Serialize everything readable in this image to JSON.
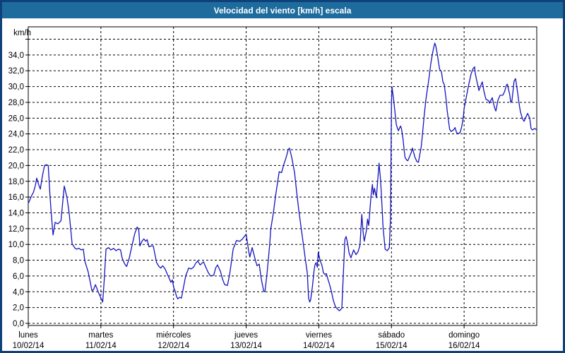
{
  "window": {
    "title": "Velocidad del viento [km/h] escala"
  },
  "colors": {
    "window_border": "#10407a",
    "titlebar_bg": "#1d6c9d",
    "title_text": "#ffffff",
    "plot_bg": "#ffffff",
    "plot_border": "#000000",
    "grid": "#000000",
    "line": "#1414be"
  },
  "chart_data": {
    "type": "line",
    "title": "Velocidad del viento [km/h] escala",
    "ylabel": "km/h",
    "y_unit_label": "km/h",
    "ylim": [
      0,
      37.6
    ],
    "y_ticks": [
      0,
      2,
      4,
      6,
      8,
      10,
      12,
      14,
      16,
      18,
      20,
      22,
      24,
      26,
      28,
      30,
      32,
      34
    ],
    "y_grid_max": 36,
    "grid": "dashed",
    "hours_per_day": 24,
    "xlim_hours": [
      0,
      168
    ],
    "x_days": [
      {
        "name": "lunes",
        "date": "10/02/14"
      },
      {
        "name": "martes",
        "date": "11/02/14"
      },
      {
        "name": "miércoles",
        "date": "12/02/14"
      },
      {
        "name": "jueves",
        "date": "13/02/14"
      },
      {
        "name": "viernes",
        "date": "14/02/14"
      },
      {
        "name": "sábado",
        "date": "15/02/14"
      },
      {
        "name": "domingo",
        "date": "16/02/14"
      }
    ],
    "series": [
      {
        "name": "Velocidad del viento",
        "color": "#1414be",
        "points": [
          [
            0,
            15.2
          ],
          [
            0.5,
            15.6
          ],
          [
            1,
            16.1
          ],
          [
            1.7,
            16.6
          ],
          [
            2.3,
            17.4
          ],
          [
            2.8,
            18.4
          ],
          [
            3.4,
            17.6
          ],
          [
            4,
            17.0
          ],
          [
            4.7,
            18.7
          ],
          [
            5.4,
            20.0
          ],
          [
            6,
            20.1
          ],
          [
            6.6,
            20.0
          ],
          [
            7.2,
            16.0
          ],
          [
            7.6,
            13.9
          ],
          [
            8.2,
            11.2
          ],
          [
            8.9,
            12.8
          ],
          [
            9.8,
            12.6
          ],
          [
            10.8,
            13.0
          ],
          [
            11.9,
            17.4
          ],
          [
            12.8,
            15.9
          ],
          [
            13.5,
            14.0
          ],
          [
            14.5,
            10.1
          ],
          [
            15.3,
            9.6
          ],
          [
            15.9,
            9.4
          ],
          [
            16.8,
            9.5
          ],
          [
            17.5,
            9.3
          ],
          [
            18.2,
            9.4
          ],
          [
            18.7,
            7.9
          ],
          [
            19.8,
            6.5
          ],
          [
            20.7,
            4.8
          ],
          [
            21.1,
            4.1
          ],
          [
            21.6,
            4.3
          ],
          [
            22.2,
            4.9
          ],
          [
            23.2,
            3.9
          ],
          [
            24.0,
            3.2
          ],
          [
            24.6,
            2.7
          ],
          [
            25.1,
            5.5
          ],
          [
            25.7,
            9.4
          ],
          [
            26.5,
            9.6
          ],
          [
            27.3,
            9.3
          ],
          [
            28.2,
            9.5
          ],
          [
            29.0,
            9.2
          ],
          [
            29.8,
            9.4
          ],
          [
            30.5,
            9.3
          ],
          [
            31.0,
            8.3
          ],
          [
            31.9,
            7.5
          ],
          [
            32.5,
            7.2
          ],
          [
            33.4,
            8.3
          ],
          [
            34.3,
            9.9
          ],
          [
            35.2,
            11.4
          ],
          [
            36.0,
            12.2
          ],
          [
            36.5,
            11.9
          ],
          [
            36.9,
            9.8
          ],
          [
            37.6,
            10.4
          ],
          [
            38.2,
            10.7
          ],
          [
            38.8,
            10.4
          ],
          [
            39.3,
            10.6
          ],
          [
            39.9,
            9.7
          ],
          [
            40.5,
            9.8
          ],
          [
            41.3,
            9.8
          ],
          [
            42.4,
            7.7
          ],
          [
            43.2,
            7.2
          ],
          [
            43.8,
            7.0
          ],
          [
            44.4,
            7.3
          ],
          [
            45.2,
            6.9
          ],
          [
            46.0,
            6.2
          ],
          [
            46.7,
            5.6
          ],
          [
            47.1,
            5.2
          ],
          [
            47.6,
            5.5
          ],
          [
            48.1,
            4.5
          ],
          [
            48.5,
            4.1
          ],
          [
            49.0,
            3.4
          ],
          [
            49.4,
            3.1
          ],
          [
            50.0,
            3.3
          ],
          [
            50.6,
            3.2
          ],
          [
            51.3,
            4.6
          ],
          [
            52.0,
            6.0
          ],
          [
            53.0,
            7.0
          ],
          [
            53.8,
            6.9
          ],
          [
            54.6,
            7.1
          ],
          [
            55.3,
            7.6
          ],
          [
            56.0,
            7.9
          ],
          [
            56.8,
            7.4
          ],
          [
            57.9,
            7.8
          ],
          [
            58.8,
            7.0
          ],
          [
            59.5,
            6.4
          ],
          [
            60.2,
            6.0
          ],
          [
            61.3,
            6.1
          ],
          [
            61.9,
            7.0
          ],
          [
            62.5,
            7.4
          ],
          [
            63.5,
            6.6
          ],
          [
            64.2,
            5.6
          ],
          [
            64.9,
            4.9
          ],
          [
            65.8,
            4.8
          ],
          [
            66.5,
            6.1
          ],
          [
            67.2,
            8.0
          ],
          [
            67.7,
            9.4
          ],
          [
            68.2,
            9.9
          ],
          [
            68.8,
            10.5
          ],
          [
            69.9,
            10.4
          ],
          [
            70.8,
            10.7
          ],
          [
            72.0,
            11.3
          ],
          [
            72.8,
            9.2
          ],
          [
            73.2,
            8.4
          ],
          [
            74.0,
            9.6
          ],
          [
            75.1,
            7.9
          ],
          [
            75.6,
            7.3
          ],
          [
            76.3,
            7.5
          ],
          [
            77.0,
            5.6
          ],
          [
            77.8,
            4.1
          ],
          [
            78.2,
            4.0
          ],
          [
            78.9,
            6.3
          ],
          [
            79.8,
            10.1
          ],
          [
            80.1,
            11.9
          ],
          [
            81.0,
            14.0
          ],
          [
            81.7,
            16.1
          ],
          [
            82.4,
            17.9
          ],
          [
            82.9,
            19.2
          ],
          [
            83.7,
            19.1
          ],
          [
            84.4,
            20.1
          ],
          [
            85.2,
            21.0
          ],
          [
            85.9,
            22.0
          ],
          [
            86.3,
            22.2
          ],
          [
            87.0,
            21.1
          ],
          [
            88.0,
            19.1
          ],
          [
            88.7,
            16.6
          ],
          [
            89.4,
            14.3
          ],
          [
            90.3,
            11.7
          ],
          [
            91.0,
            9.7
          ],
          [
            91.7,
            7.7
          ],
          [
            92.2,
            6.4
          ],
          [
            92.6,
            3.2
          ],
          [
            93.0,
            2.7
          ],
          [
            93.3,
            3.0
          ],
          [
            93.9,
            4.7
          ],
          [
            94.4,
            6.6
          ],
          [
            94.7,
            7.4
          ],
          [
            95.1,
            7.7
          ],
          [
            95.5,
            7.1
          ],
          [
            95.8,
            9.0
          ],
          [
            96.0,
            8.7
          ],
          [
            96.4,
            8.0
          ],
          [
            97.0,
            7.4
          ],
          [
            97.5,
            6.4
          ],
          [
            98.0,
            6.2
          ],
          [
            98.5,
            6.3
          ],
          [
            99.0,
            5.6
          ],
          [
            99.5,
            5.0
          ],
          [
            100.2,
            4.0
          ],
          [
            100.8,
            2.9
          ],
          [
            101.5,
            2.1
          ],
          [
            102.2,
            1.8
          ],
          [
            102.8,
            1.6
          ],
          [
            103.6,
            1.9
          ],
          [
            104.6,
            10.6
          ],
          [
            105.0,
            11.0
          ],
          [
            105.5,
            10.2
          ],
          [
            106.0,
            8.9
          ],
          [
            106.6,
            8.3
          ],
          [
            107.5,
            9.3
          ],
          [
            108.3,
            8.7
          ],
          [
            109.0,
            9.1
          ],
          [
            109.6,
            9.9
          ],
          [
            110.2,
            13.8
          ],
          [
            110.6,
            11.7
          ],
          [
            111.0,
            10.4
          ],
          [
            111.7,
            11.7
          ],
          [
            112.1,
            13.2
          ],
          [
            112.5,
            12.4
          ],
          [
            113.2,
            15.9
          ],
          [
            113.7,
            17.6
          ],
          [
            114.0,
            16.3
          ],
          [
            114.4,
            17.1
          ],
          [
            115.0,
            15.9
          ],
          [
            115.9,
            20.3
          ],
          [
            116.4,
            18.1
          ],
          [
            116.9,
            14.7
          ],
          [
            117.2,
            12.3
          ],
          [
            117.9,
            9.4
          ],
          [
            118.6,
            9.2
          ],
          [
            119.3,
            9.6
          ],
          [
            119.7,
            13.6
          ],
          [
            120.0,
            28.0
          ],
          [
            120.2,
            29.9
          ],
          [
            120.7,
            28.4
          ],
          [
            121.0,
            27.3
          ],
          [
            121.6,
            25.2
          ],
          [
            122.0,
            24.7
          ],
          [
            122.3,
            24.4
          ],
          [
            123.0,
            25.0
          ],
          [
            123.3,
            24.7
          ],
          [
            123.8,
            23.4
          ],
          [
            124.2,
            21.9
          ],
          [
            124.5,
            21.0
          ],
          [
            125.0,
            20.7
          ],
          [
            125.4,
            20.6
          ],
          [
            126.6,
            21.7
          ],
          [
            126.9,
            22.2
          ],
          [
            127.8,
            21.0
          ],
          [
            128.4,
            20.5
          ],
          [
            128.9,
            20.4
          ],
          [
            129.8,
            22.3
          ],
          [
            130.1,
            23.4
          ],
          [
            130.8,
            26.3
          ],
          [
            131.4,
            28.4
          ],
          [
            132.3,
            30.8
          ],
          [
            133.0,
            32.9
          ],
          [
            133.6,
            34.3
          ],
          [
            134.0,
            35.0
          ],
          [
            134.3,
            35.5
          ],
          [
            134.6,
            35.2
          ],
          [
            135.0,
            34.4
          ],
          [
            135.5,
            33.2
          ],
          [
            135.9,
            32.2
          ],
          [
            136.5,
            31.9
          ],
          [
            137.0,
            30.6
          ],
          [
            137.4,
            30.3
          ],
          [
            138.0,
            28.6
          ],
          [
            138.4,
            27.0
          ],
          [
            138.8,
            25.8
          ],
          [
            139.2,
            24.6
          ],
          [
            139.7,
            24.3
          ],
          [
            140.5,
            24.5
          ],
          [
            141.0,
            24.8
          ],
          [
            141.5,
            24.2
          ],
          [
            142.0,
            24.0
          ],
          [
            142.7,
            24.2
          ],
          [
            143.2,
            24.9
          ],
          [
            143.7,
            26.0
          ],
          [
            144.0,
            27.2
          ],
          [
            145.4,
            30.0
          ],
          [
            146.3,
            31.6
          ],
          [
            147.0,
            32.3
          ],
          [
            147.5,
            32.5
          ],
          [
            147.7,
            31.6
          ],
          [
            148.6,
            30.0
          ],
          [
            148.9,
            29.5
          ],
          [
            149.8,
            30.4
          ],
          [
            150.0,
            30.6
          ],
          [
            150.5,
            29.5
          ],
          [
            151.2,
            28.4
          ],
          [
            152.1,
            28.2
          ],
          [
            152.4,
            27.9
          ],
          [
            153.3,
            28.6
          ],
          [
            154.0,
            27.4
          ],
          [
            154.5,
            26.9
          ],
          [
            155.2,
            28.3
          ],
          [
            155.9,
            28.9
          ],
          [
            156.8,
            28.9
          ],
          [
            157.4,
            29.4
          ],
          [
            158.0,
            30.2
          ],
          [
            158.3,
            30.3
          ],
          [
            159.1,
            28.9
          ],
          [
            159.4,
            28.0
          ],
          [
            159.8,
            28.2
          ],
          [
            160.5,
            30.7
          ],
          [
            161.0,
            31.0
          ],
          [
            161.7,
            29.2
          ],
          [
            162.1,
            28.0
          ],
          [
            162.6,
            26.8
          ],
          [
            163.3,
            25.9
          ],
          [
            163.8,
            25.6
          ],
          [
            164.5,
            26.2
          ],
          [
            165.0,
            26.6
          ],
          [
            165.7,
            26.0
          ],
          [
            166.1,
            24.7
          ],
          [
            166.6,
            24.5
          ],
          [
            167.3,
            24.7
          ],
          [
            168.0,
            24.5
          ]
        ]
      }
    ],
    "legend": "none"
  }
}
